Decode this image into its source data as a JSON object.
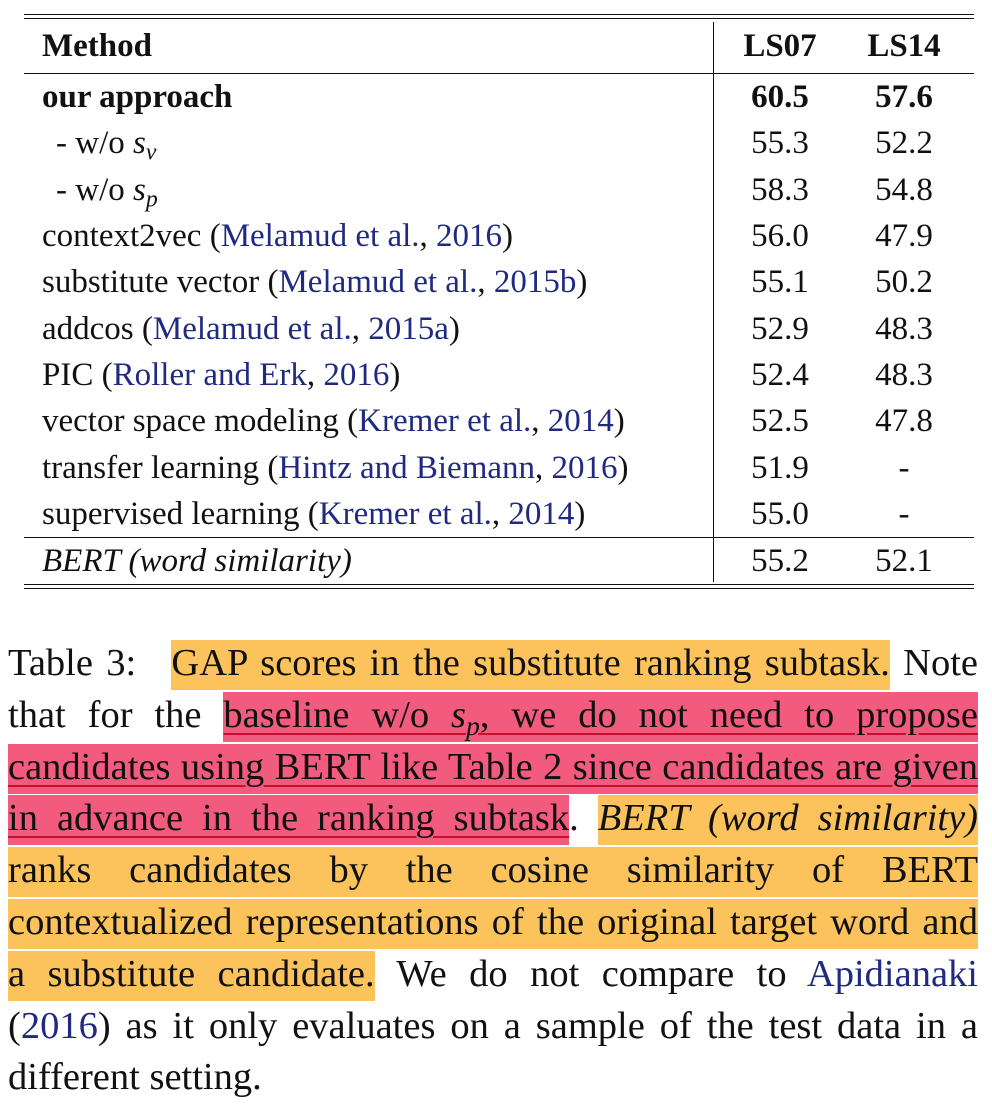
{
  "table": {
    "headers": [
      "Method",
      "LS07",
      "LS14"
    ],
    "rows": [
      {
        "method": "our approach",
        "cite": "",
        "ls07": "60.5",
        "ls14": "57.6"
      },
      {
        "method": "- w/o ",
        "var": "s",
        "sub": "v",
        "ls07": "55.3",
        "ls14": "52.2"
      },
      {
        "method": "- w/o ",
        "var": "s",
        "sub": "p",
        "ls07": "58.3",
        "ls14": "54.8"
      },
      {
        "method": "context2vec",
        "cite_a": "Melamud et al.",
        "cite_b": "2016",
        "ls07": "56.0",
        "ls14": "47.9"
      },
      {
        "method": "substitute vector",
        "cite_a": "Melamud et al.",
        "cite_b": "2015b",
        "ls07": "55.1",
        "ls14": "50.2"
      },
      {
        "method": "addcos",
        "cite_a": "Melamud et al.",
        "cite_b": "2015a",
        "ls07": "52.9",
        "ls14": "48.3"
      },
      {
        "method": "PIC",
        "cite_a": "Roller and Erk",
        "cite_b": "2016",
        "ls07": "52.4",
        "ls14": "48.3"
      },
      {
        "method": "vector space modeling",
        "cite_a": "Kremer et al.",
        "cite_b": "2014",
        "ls07": "52.5",
        "ls14": "47.8"
      },
      {
        "method": "transfer learning",
        "cite_a": "Hintz and Biemann",
        "cite_b": "2016",
        "ls07": "51.9",
        "ls14": "-"
      },
      {
        "method": "supervised learning",
        "cite_a": "Kremer et al.",
        "cite_b": "2014",
        "ls07": "55.0",
        "ls14": "-"
      },
      {
        "method": "BERT (word similarity)",
        "ls07": "55.2",
        "ls14": "52.1"
      }
    ]
  },
  "caption": {
    "label": "Table 3:",
    "hl1": "GAP scores in the substitute ranking subtask.",
    "t1": " Note that for the ",
    "hl2a": "baseline w/o ",
    "hl2_var": "s",
    "hl2_sub": "p",
    "hl2b": ", we do not need to propose candidates using BERT like Table 2 since candidates are given in advance in the ranking subtask",
    "t2": ". ",
    "hl3_italic": "BERT (word similarity)",
    "hl3": " ranks candidates by the cosine similarity of BERT contextualized representations of the original target word and a substitute candidate.",
    "t3": " We do not compare to ",
    "cite_a": "Apidianaki",
    "t4": " (",
    "cite_b": "2016",
    "t5": ") as it only evaluates on a sample of the test data in a different setting."
  },
  "colors": {
    "orange_highlight": "#fcc25c",
    "red_highlight": "#f25a7e",
    "citation": "#1f2a80"
  }
}
